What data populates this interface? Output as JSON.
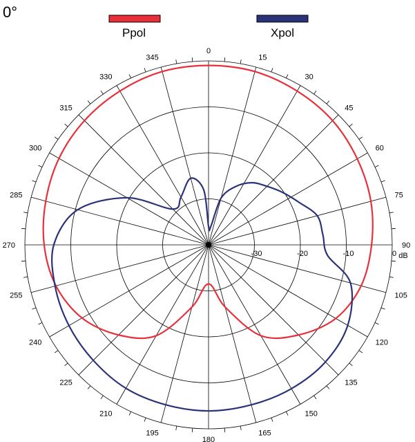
{
  "chart_data": {
    "type": "polar-line",
    "title": "0°",
    "radial_unit": "dB",
    "radial_ticks": [
      "-30",
      "-20",
      "-10",
      "0"
    ],
    "radial_range": [
      -40,
      0
    ],
    "angle_labels": [
      "0",
      "15",
      "30",
      "45",
      "60",
      "75",
      "90",
      "105",
      "120",
      "135",
      "150",
      "165",
      "180",
      "195",
      "210",
      "225",
      "240",
      "255",
      "270",
      "285",
      "300",
      "315",
      "330",
      "345"
    ],
    "legend_position": "top",
    "series": [
      {
        "name": "Ppol",
        "color": "#e8303a",
        "points": [
          [
            0,
            -1.0
          ],
          [
            15,
            -1.0
          ],
          [
            30,
            -1.4
          ],
          [
            45,
            -1.8
          ],
          [
            60,
            -2.6
          ],
          [
            75,
            -3.4
          ],
          [
            90,
            -4.5
          ],
          [
            105,
            -5.6
          ],
          [
            120,
            -8.0
          ],
          [
            135,
            -12.3
          ],
          [
            150,
            -17.2
          ],
          [
            165,
            -26.0
          ],
          [
            180,
            -31.5
          ],
          [
            195,
            -26.0
          ],
          [
            210,
            -17.2
          ],
          [
            225,
            -12.3
          ],
          [
            240,
            -8.2
          ],
          [
            255,
            -5.6
          ],
          [
            270,
            -4.2
          ],
          [
            285,
            -3.3
          ],
          [
            300,
            -2.4
          ],
          [
            315,
            -1.8
          ],
          [
            330,
            -1.4
          ],
          [
            345,
            -1.0
          ]
        ]
      },
      {
        "name": "Xpol",
        "color": "#2b3378",
        "points": [
          [
            0,
            -36.0
          ],
          [
            7,
            -36.0
          ],
          [
            15,
            -29.5
          ],
          [
            25,
            -26.0
          ],
          [
            35,
            -23.5
          ],
          [
            45,
            -22.0
          ],
          [
            55,
            -20.2
          ],
          [
            65,
            -18.2
          ],
          [
            75,
            -15.5
          ],
          [
            85,
            -15.0
          ],
          [
            95,
            -14.0
          ],
          [
            105,
            -8.0
          ],
          [
            120,
            -5.0
          ],
          [
            135,
            -4.0
          ],
          [
            150,
            -3.9
          ],
          [
            165,
            -4.0
          ],
          [
            180,
            -3.9
          ],
          [
            195,
            -4.0
          ],
          [
            210,
            -4.0
          ],
          [
            225,
            -4.5
          ],
          [
            240,
            -4.9
          ],
          [
            255,
            -5.4
          ],
          [
            270,
            -6.3
          ],
          [
            285,
            -10.5
          ],
          [
            300,
            -19.5
          ],
          [
            315,
            -29.0
          ],
          [
            330,
            -28.0
          ],
          [
            345,
            -25.0
          ],
          [
            355,
            -28.0
          ]
        ]
      }
    ]
  }
}
